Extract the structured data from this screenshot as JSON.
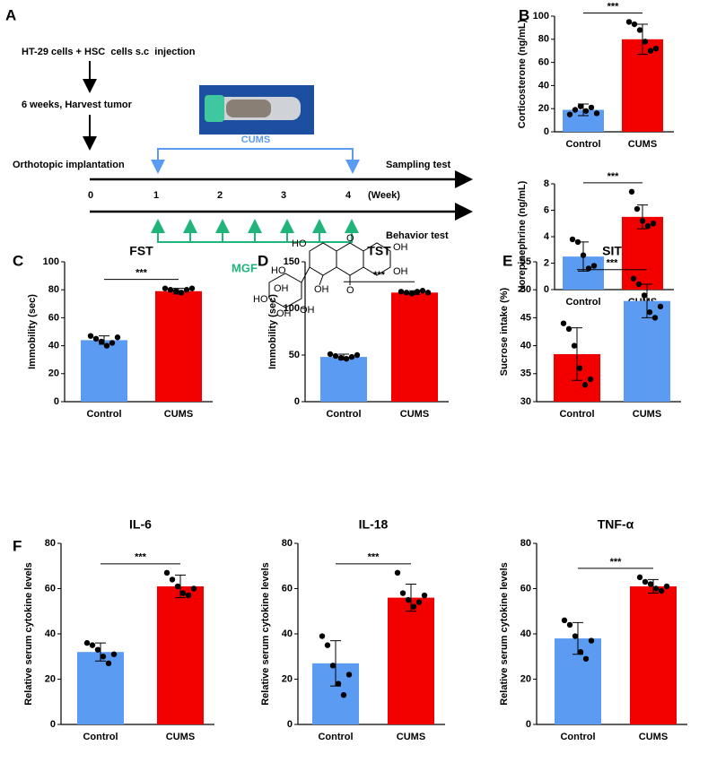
{
  "diagram": {
    "panel": "A",
    "steps": [
      "HT-29 cells + HSC  cells s.c  injection",
      "6 weeks, Harvest tumor",
      "Orthotopic implantation"
    ],
    "cums": "CUMS",
    "sampling": "Sampling test",
    "weeks": [
      "0",
      "1",
      "2",
      "3",
      "4"
    ],
    "week_unit": "(Week)",
    "behavior": "Behavior test",
    "drug": "MGF",
    "structure": [
      "HO",
      "O",
      "OH",
      "OH",
      "OH",
      "O",
      "HO",
      "OH",
      "HO",
      "OH",
      "OH"
    ]
  },
  "chart_data": [
    {
      "type": "bar",
      "panel": "B",
      "ylabel": "Corticosterone (ng/mL)",
      "categories": [
        "Control",
        "CUMS"
      ],
      "values": [
        19,
        80
      ],
      "errors": [
        5,
        13
      ],
      "points": [
        [
          15,
          19,
          22,
          18,
          21,
          16
        ],
        [
          95,
          93,
          88,
          78,
          70,
          72
        ]
      ],
      "colors": [
        "#5b9cf2",
        "#f20000"
      ],
      "ylim": [
        0,
        100
      ],
      "yticks": [
        0,
        20,
        40,
        60,
        80,
        100
      ],
      "significance": "***"
    },
    {
      "type": "bar",
      "ylabel": "Norepinephrine (ng/mL)",
      "categories": [
        "Control",
        "CUMS"
      ],
      "values": [
        2.5,
        5.5
      ],
      "errors": [
        1.1,
        0.9
      ],
      "points": [
        [
          3.8,
          3.6,
          2.6,
          1.6,
          1.8
        ],
        [
          7.4,
          6.1,
          5.2,
          4.8,
          5.0
        ]
      ],
      "colors": [
        "#5b9cf2",
        "#f20000"
      ],
      "ylim": [
        0,
        8
      ],
      "yticks": [
        0,
        2,
        4,
        6,
        8
      ],
      "significance": "***"
    },
    {
      "type": "bar",
      "panel": "C",
      "title": "FST",
      "ylabel": "Immobility (sec)",
      "categories": [
        "Control",
        "CUMS"
      ],
      "values": [
        44,
        79
      ],
      "errors": [
        3,
        2
      ],
      "points": [
        [
          47,
          45,
          43,
          40,
          42,
          46
        ],
        [
          81,
          80,
          79,
          78,
          80,
          81
        ]
      ],
      "colors": [
        "#5b9cf2",
        "#f20000"
      ],
      "ylim": [
        0,
        100
      ],
      "yticks": [
        0,
        20,
        40,
        60,
        80,
        100
      ],
      "significance": "***"
    },
    {
      "type": "bar",
      "panel": "D",
      "title": "TST",
      "ylabel": "Immobility (sec)",
      "categories": [
        "Control",
        "CUMS"
      ],
      "values": [
        48,
        117
      ],
      "errors": [
        3,
        2
      ],
      "points": [
        [
          51,
          49,
          47,
          46,
          48,
          50
        ],
        [
          118,
          117,
          116,
          118,
          119,
          117
        ]
      ],
      "colors": [
        "#5b9cf2",
        "#f20000"
      ],
      "ylim": [
        0,
        150
      ],
      "yticks": [
        0,
        50,
        100,
        150
      ],
      "significance": "***"
    },
    {
      "type": "bar",
      "panel": "E",
      "title": "SIT",
      "ylabel": "Sucrose intake (%)",
      "categories": [
        "Control",
        "CUMS"
      ],
      "values": [
        38.5,
        48
      ],
      "errors": [
        4.7,
        3
      ],
      "points": [
        [
          44,
          43,
          40,
          36,
          33,
          34
        ],
        [
          52,
          51,
          49,
          46,
          45,
          47
        ]
      ],
      "colors": [
        "#f20000",
        "#5b9cf2"
      ],
      "ylim": [
        30,
        55
      ],
      "yticks": [
        30,
        35,
        40,
        45,
        50,
        55
      ],
      "significance": "***"
    },
    {
      "type": "bar",
      "panel": "F",
      "title": "IL-6",
      "ylabel": "Relative serum cytokine levels",
      "categories": [
        "Control",
        "CUMS"
      ],
      "values": [
        32,
        61
      ],
      "errors": [
        4,
        5
      ],
      "points": [
        [
          36,
          35,
          33,
          30,
          27,
          31
        ],
        [
          67,
          64,
          61,
          58,
          57,
          60
        ]
      ],
      "colors": [
        "#5b9cf2",
        "#f20000"
      ],
      "ylim": [
        0,
        80
      ],
      "yticks": [
        0,
        20,
        40,
        60,
        80
      ],
      "significance": "***"
    },
    {
      "type": "bar",
      "title": "IL-18",
      "ylabel": "Relative serum cytokine levels",
      "categories": [
        "Control",
        "CUMS"
      ],
      "values": [
        27,
        56
      ],
      "errors": [
        10,
        6
      ],
      "points": [
        [
          39,
          35,
          26,
          18,
          13,
          22
        ],
        [
          67,
          58,
          55,
          52,
          54,
          57
        ]
      ],
      "colors": [
        "#5b9cf2",
        "#f20000"
      ],
      "ylim": [
        0,
        80
      ],
      "yticks": [
        0,
        20,
        40,
        60,
        80
      ],
      "significance": "***"
    },
    {
      "type": "bar",
      "title": "TNF-α",
      "ylabel": "Relative serum cytokine levels",
      "categories": [
        "Control",
        "CUMS"
      ],
      "values": [
        38,
        61
      ],
      "errors": [
        7,
        3
      ],
      "points": [
        [
          46,
          44,
          39,
          32,
          29,
          37
        ],
        [
          65,
          63,
          62,
          60,
          59,
          61
        ]
      ],
      "colors": [
        "#5b9cf2",
        "#f20000"
      ],
      "ylim": [
        0,
        80
      ],
      "yticks": [
        0,
        20,
        40,
        60,
        80
      ],
      "significance": "***"
    }
  ]
}
